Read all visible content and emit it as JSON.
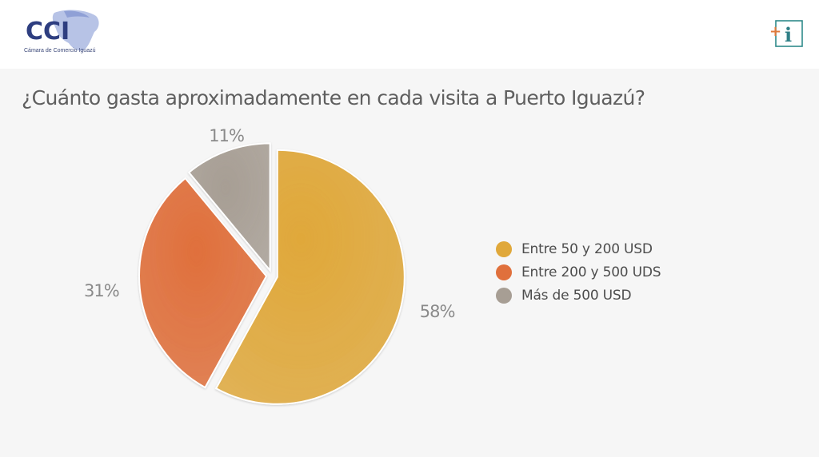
{
  "header": {
    "logo_text": "CCI",
    "logo_subtitle": "Cámara de Comercio Iguazú",
    "info_icon_text": "+i"
  },
  "chart_data": {
    "type": "pie",
    "title": "¿Cuánto gasta aproximadamente en cada visita a Puerto Iguazú?",
    "categories": [
      "Entre 50 y 200 USD",
      "Entre 200 y 500 UDS",
      "Más de 500 USD"
    ],
    "values": [
      58,
      31,
      11
    ],
    "labels": [
      "58%",
      "31%",
      "11%"
    ],
    "colors": [
      "#e0a83a",
      "#e0703c",
      "#a79e94"
    ],
    "exploded": true,
    "legend_position": "right"
  }
}
